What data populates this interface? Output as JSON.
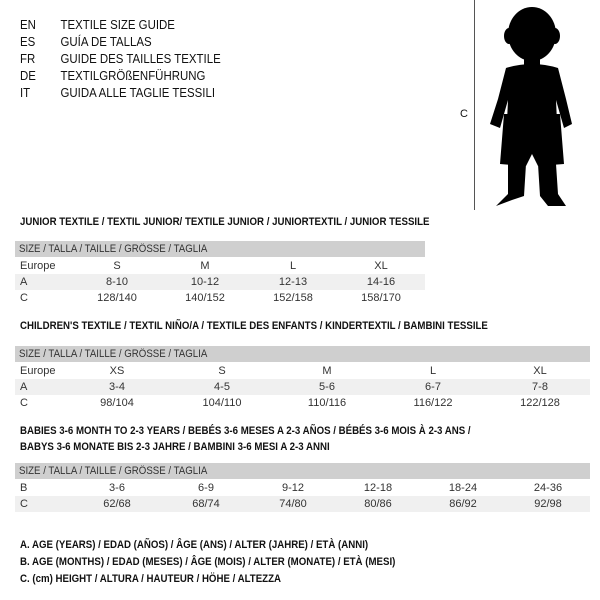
{
  "languages": [
    {
      "code": "EN",
      "text": "TEXTILE SIZE GUIDE"
    },
    {
      "code": "ES",
      "text": "GUÍA DE TALLAS"
    },
    {
      "code": "FR",
      "text": "GUIDE DES TAILLES TEXTILE"
    },
    {
      "code": "DE",
      "text": "TEXTILGRÖßENFÜHRUNG"
    },
    {
      "code": "IT",
      "text": "GUIDA ALLE TAGLIE TESSILI"
    }
  ],
  "figure": {
    "label": "C",
    "icon": "child-silhouette-icon"
  },
  "junior": {
    "title": "JUNIOR TEXTILE / TEXTIL JUNIOR/ TEXTILE JUNIOR / JUNIORTEXTIL / JUNIOR TESSILE",
    "header": "SIZE / TALLA / TAILLE / GRÖSSE / TAGLIA",
    "rows": [
      {
        "label": "Europe",
        "values": [
          "S",
          "M",
          "L",
          "XL"
        ]
      },
      {
        "label": "A",
        "values": [
          "8-10",
          "10-12",
          "12-13",
          "14-16"
        ]
      },
      {
        "label": "C",
        "values": [
          "128/140",
          "140/152",
          "152/158",
          "158/170"
        ]
      }
    ]
  },
  "children": {
    "title": "CHILDREN'S TEXTILE / TEXTIL NIÑO/A / TEXTILE DES ENFANTS / KINDERTEXTIL / BAMBINI TESSILE",
    "header": "SIZE / TALLA / TAILLE / GRÖSSE / TAGLIA",
    "rows": [
      {
        "label": "Europe",
        "values": [
          "XS",
          "S",
          "M",
          "L",
          "XL"
        ]
      },
      {
        "label": "A",
        "values": [
          "3-4",
          "4-5",
          "5-6",
          "6-7",
          "7-8"
        ]
      },
      {
        "label": "C",
        "values": [
          "98/104",
          "104/110",
          "110/116",
          "116/122",
          "122/128"
        ]
      }
    ]
  },
  "babies": {
    "title_line1": "BABIES 3-6 MONTH TO 2-3 YEARS / BEBÉS 3-6 MESES A 2-3 AÑOS / BÉBÉS 3-6 MOIS À 2-3 ANS /",
    "title_line2": "BABYS 3-6 MONATE BIS 2-3 JAHRE / BAMBINI 3-6 MESI A 2-3 ANNI",
    "header": "SIZE / TALLA / TAILLE / GRÖSSE / TAGLIA",
    "rows": [
      {
        "label": "B",
        "values": [
          "3-6",
          "6-9",
          "9-12",
          "12-18",
          "18-24",
          "24-36"
        ]
      },
      {
        "label": "C",
        "values": [
          "62/68",
          "68/74",
          "74/80",
          "80/86",
          "86/92",
          "92/98"
        ]
      }
    ]
  },
  "legend": [
    "A. AGE (YEARS) / EDAD (AÑOS) / ÂGE (ANS) / ALTER (JAHRE) / ETÀ (ANNI)",
    "B. AGE (MONTHS) / EDAD (MESES) / ÂGE (MOIS) / ALTER (MONATE) / ETÀ (MESI)",
    "C. (cm) HEIGHT / ALTURA / HAUTEUR / HÖHE / ALTEZZA"
  ]
}
